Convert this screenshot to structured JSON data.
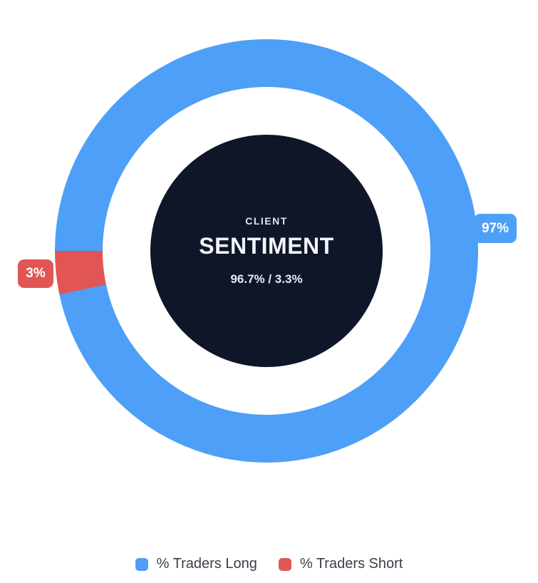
{
  "chart_data": {
    "type": "pie",
    "variant": "doughnut",
    "title": "CLIENT SENTIMENT",
    "labels": [
      "% Traders Long",
      "% Traders Short"
    ],
    "values": [
      96.7,
      3.3
    ],
    "colors": [
      "#4d9ff7",
      "#e25555"
    ],
    "callout_labels": [
      "97%",
      "3%"
    ],
    "rotation_deg": 270,
    "legend_position": "bottom",
    "center": {
      "eyebrow": "CLIENT",
      "title": "SENTIMENT",
      "subtitle": "96.7% / 3.3%",
      "background": "#0f1628",
      "text_color": "#e8ecf1"
    }
  }
}
